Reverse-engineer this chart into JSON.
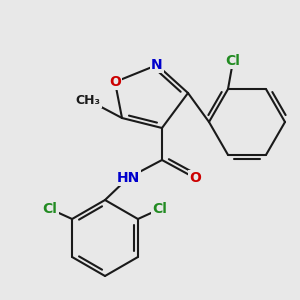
{
  "background_color": "#e8e8e8",
  "bond_color": "#1a1a1a",
  "bond_width": 1.5,
  "colors": {
    "N": "#0000cc",
    "O": "#cc0000",
    "Cl": "#228B22",
    "H": "#555555"
  },
  "figsize": [
    3.0,
    3.0
  ],
  "dpi": 100
}
